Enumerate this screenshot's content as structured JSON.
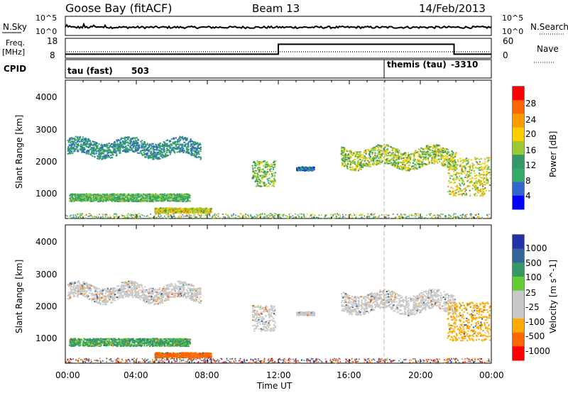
{
  "header": {
    "station": "Goose Bay (fitACF)",
    "beam": "Beam 13",
    "date": "14/Feb/2013"
  },
  "noise_panel": {
    "left_label": "N.Sky",
    "right_label": "N.Search",
    "ticks_left": [
      "10^5",
      "10^0"
    ],
    "ticks_right": [
      "10^5",
      "10^0"
    ]
  },
  "freq_panel": {
    "left_label_1": "Freq.",
    "left_label_2": "[MHz]",
    "right_label": "Nave",
    "ticks_left": [
      "18",
      "8"
    ],
    "ticks_right": [
      "60",
      "0"
    ],
    "freq_steps": [
      {
        "from_hour": 0.0,
        "to_hour": 12.0,
        "value_mhz": 10
      },
      {
        "from_hour": 12.0,
        "to_hour": 21.9,
        "value_mhz": 15
      },
      {
        "from_hour": 21.9,
        "to_hour": 24.0,
        "value_mhz": 10
      }
    ]
  },
  "cpid_panel": {
    "label": "CPID",
    "segments": [
      {
        "name": "tau (fast)",
        "code": "503"
      },
      {
        "name": "themis (tau)",
        "code": "-3310"
      }
    ]
  },
  "power_panel": {
    "ylabel": "Slant Range [km]",
    "yticks": [
      "4000",
      "3000",
      "2000",
      "1000"
    ],
    "colorbar_label": "Power [dB]",
    "colorbar_ticks": [
      "28",
      "24",
      "20",
      "16",
      "12",
      "8",
      "4"
    ],
    "colors": [
      "#ff0000",
      "#ff6600",
      "#ff9900",
      "#ffcc00",
      "#99cc33",
      "#339966",
      "#33aa66",
      "#3366cc",
      "#0000ff"
    ]
  },
  "velocity_panel": {
    "ylabel": "Slant Range [km]",
    "yticks": [
      "4000",
      "3000",
      "2000",
      "1000"
    ],
    "colorbar_label": "Velocity [m s^-1]",
    "colorbar_ticks": [
      "1000",
      "500",
      "100",
      "25",
      "-25",
      "-100",
      "-500",
      "-1000"
    ],
    "colors": [
      "#2233aa",
      "#336699",
      "#339966",
      "#66cc33",
      "#c8c8c8",
      "#c8c8c8",
      "#ffaa00",
      "#ff6600",
      "#ff0000"
    ]
  },
  "x_axis": {
    "label": "Time UT",
    "ticks": [
      "00:00",
      "04:00",
      "08:00",
      "12:00",
      "16:00",
      "20:00",
      "00:00"
    ]
  },
  "chart_data": {
    "type": "heatmap",
    "title": "Goose Bay (fitACF)  Beam 13  14/Feb/2013",
    "xlabel": "Time UT",
    "ylabel": "Slant Range [km]",
    "xlim_hours": [
      0,
      24
    ],
    "ylim_km": [
      180,
      4500
    ],
    "scatter_regions": [
      {
        "t_start": 0.1,
        "t_end": 7.6,
        "r_center": 2400,
        "r_halfwidth": 250,
        "power_db": 8,
        "velocity": 0
      },
      {
        "t_start": 0.2,
        "t_end": 7.0,
        "r_center": 850,
        "r_halfwidth": 120,
        "power_db": 12,
        "velocity": 60
      },
      {
        "t_start": 5.0,
        "t_end": 8.2,
        "r_center": 450,
        "r_halfwidth": 80,
        "power_db": 18,
        "velocity": -120
      },
      {
        "t_start": 10.5,
        "t_end": 11.8,
        "r_center": 1600,
        "r_halfwidth": 400,
        "power_db": 14,
        "velocity": 0
      },
      {
        "t_start": 13.0,
        "t_end": 14.0,
        "r_center": 1750,
        "r_halfwidth": 60,
        "power_db": 6,
        "velocity": 0
      },
      {
        "t_start": 15.5,
        "t_end": 22.0,
        "r_center": 2100,
        "r_halfwidth": 300,
        "power_db": 16,
        "velocity": 0
      },
      {
        "t_start": 21.5,
        "t_end": 23.9,
        "r_center": 1500,
        "r_halfwidth": 600,
        "power_db": 18,
        "velocity": -50
      }
    ]
  }
}
